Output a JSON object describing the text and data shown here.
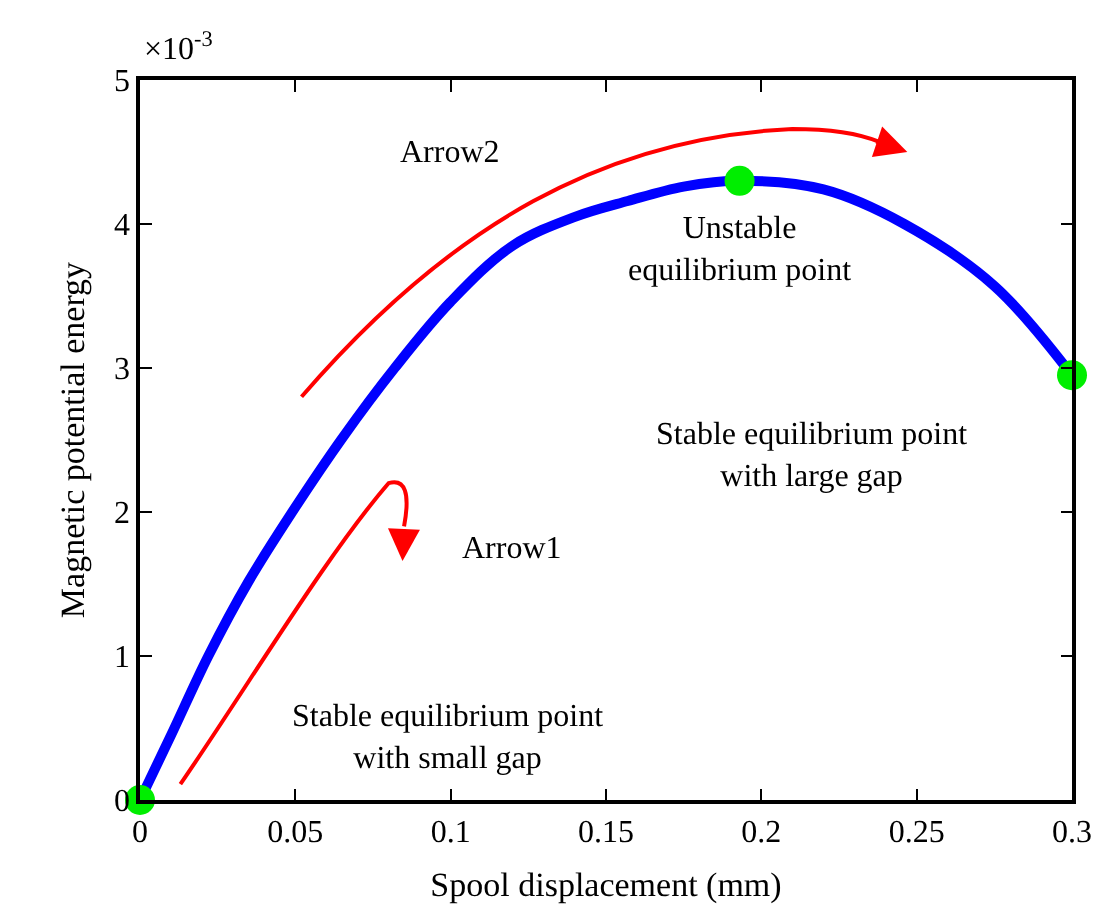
{
  "chart_data": {
    "type": "line",
    "xlabel": "Spool displacement (mm)",
    "ylabel": "Magnetic potential energy",
    "x": [
      0,
      0.01,
      0.022,
      0.035,
      0.049,
      0.065,
      0.082,
      0.1,
      0.12,
      0.14,
      0.157,
      0.175,
      0.193,
      0.22,
      0.246,
      0.275,
      0.3
    ],
    "series": [
      {
        "color": "#0000ff",
        "values": [
          0,
          0.45,
          1,
          1.52,
          2,
          2.51,
          3,
          3.46,
          3.85,
          4.05,
          4.16,
          4.26,
          4.3,
          4.24,
          4,
          3.57,
          2.95
        ]
      },
      {
        "type": "scatter",
        "color": "#00ee00",
        "x": [
          0,
          0.193,
          0.3
        ],
        "values": [
          0,
          4.3,
          2.95
        ]
      }
    ],
    "xlim": [
      0,
      0.3
    ],
    "ylim": [
      0,
      5
    ],
    "xticks": [
      0,
      0.05,
      0.1,
      0.15,
      0.2,
      0.25,
      0.3
    ],
    "yticks": [
      0,
      1,
      2,
      3,
      4,
      5
    ],
    "grid": false,
    "annotations": [
      "×10$^{-3}$",
      "Arrow2",
      "Arrow1",
      {
        "text": "Unstable\nequilibrium point",
        "x": 0.193,
        "y": 4.3
      },
      "Stable equilibrium point\nwith large gap",
      "Stable equilibrium point\nwith small gap"
    ]
  }
}
